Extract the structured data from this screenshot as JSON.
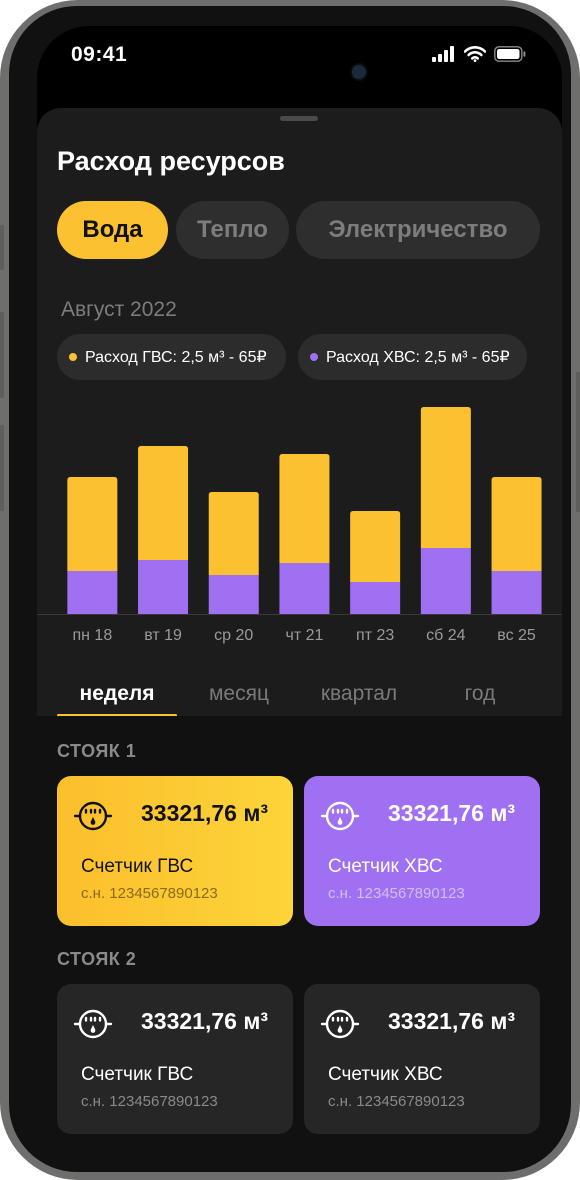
{
  "status_bar": {
    "time": "09:41"
  },
  "title": "Расход ресурсов",
  "resource_tabs": [
    {
      "label": "Вода",
      "active": true
    },
    {
      "label": "Тепло",
      "active": false
    },
    {
      "label": "Электричество",
      "active": false
    }
  ],
  "period": "Август 2022",
  "legend": [
    {
      "label": "Расход ГВС: 2,5 м³ - 65₽",
      "color": "#fcc130"
    },
    {
      "label": "Расход ХВС: 2,5 м³ - 65₽",
      "color": "#a070f2"
    }
  ],
  "chart_data": {
    "type": "bar",
    "stacked": true,
    "categories": [
      "пн 18",
      "вт 19",
      "ср 20",
      "чт 21",
      "пт 23",
      "сб 24",
      "вс 25"
    ],
    "series": [
      {
        "name": "Расход ХВС",
        "color": "#a070f2",
        "values": [
          43,
          54,
          39,
          51,
          32,
          66,
          43
        ]
      },
      {
        "name": "Расход ГВС",
        "color": "#fcc130",
        "values": [
          94,
          114,
          83,
          109,
          71,
          141,
          94
        ]
      }
    ],
    "y_axis_visible": false,
    "ylim": [
      0,
      210
    ]
  },
  "period_tabs": [
    {
      "label": "неделя",
      "active": true
    },
    {
      "label": "месяц",
      "active": false
    },
    {
      "label": "квартал",
      "active": false
    },
    {
      "label": "год",
      "active": false
    }
  ],
  "risers": [
    {
      "label": "СТОЯК 1",
      "meters": [
        {
          "reading": "33321,76 м³",
          "name": "Счетчик ГВС",
          "serial": "с.н. 1234567890123",
          "style": "gvs-active"
        },
        {
          "reading": "33321,76 м³",
          "name": "Счетчик ХВС",
          "serial": "с.н. 1234567890123",
          "style": "xvs-active"
        }
      ]
    },
    {
      "label": "СТОЯК 2",
      "meters": [
        {
          "reading": "33321,76 м³",
          "name": "Счетчик ГВС",
          "serial": "с.н. 1234567890123",
          "style": "dark"
        },
        {
          "reading": "33321,76 м³",
          "name": "Счетчик ХВС",
          "serial": "с.н. 1234567890123",
          "style": "dark"
        }
      ]
    }
  ],
  "colors": {
    "accent": "#fcc130",
    "purple": "#a070f2",
    "background": "#1c1c1c"
  }
}
